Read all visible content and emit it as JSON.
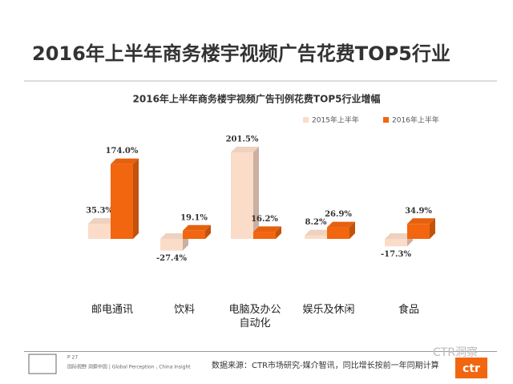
{
  "chart_data": {
    "type": "bar3d",
    "page_title": "2016年上半年商务楼宇视频广告花费TOP5行业",
    "title": "2016年上半年商务楼宇视频广告刊例花费TOP5行业增幅",
    "categories": [
      "邮电通讯",
      "饮料",
      "电脑及办公自动化",
      "娱乐及休闲",
      "食品"
    ],
    "series": [
      {
        "name": "2015年上半年",
        "color": "#fbdcc8",
        "values": [
          35.3,
          -27.4,
          201.5,
          8.2,
          -17.3
        ],
        "value_labels": [
          "35.3%",
          "-27.4%",
          "201.5%",
          "8.2%",
          "-17.3%"
        ]
      },
      {
        "name": "2016年上半年",
        "color": "#f2660f",
        "values": [
          174.0,
          19.1,
          16.2,
          26.9,
          34.9
        ],
        "value_labels": [
          "174.0%",
          "19.1%",
          "16.2%",
          "26.9%",
          "34.9%"
        ]
      }
    ],
    "legend": "top-right"
  },
  "footer": {
    "page": "P 27",
    "slogan": "国际视野  洞察中国 | Global Perception , China Insight",
    "source": "数据来源：CTR市场研究-媒介智讯，同比增长按前一年同期计算",
    "watermark": "CTR洞察",
    "logo": "ctr"
  }
}
